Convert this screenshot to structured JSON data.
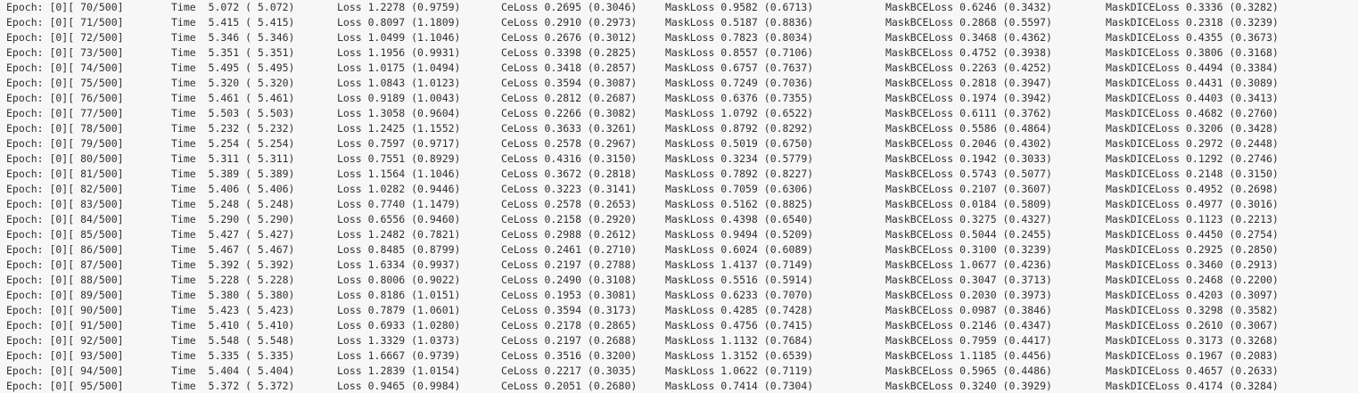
{
  "log": {
    "lines": [
      {
        "epoch": "Epoch: [0][ 70/500]",
        "time": "Time  5.072 ( 5.072)",
        "loss": "Loss 1.2278 (0.9759)",
        "ce": "CeLoss 0.2695 (0.3046)",
        "mask": "MaskLoss 0.9582 (0.6713)",
        "bce": "MaskBCELoss 0.6246 (0.3432)",
        "dice": "MaskDICELoss 0.3336 (0.3282)"
      },
      {
        "epoch": "Epoch: [0][ 71/500]",
        "time": "Time  5.415 ( 5.415)",
        "loss": "Loss 0.8097 (1.1809)",
        "ce": "CeLoss 0.2910 (0.2973)",
        "mask": "MaskLoss 0.5187 (0.8836)",
        "bce": "MaskBCELoss 0.2868 (0.5597)",
        "dice": "MaskDICELoss 0.2318 (0.3239)"
      },
      {
        "epoch": "Epoch: [0][ 72/500]",
        "time": "Time  5.346 ( 5.346)",
        "loss": "Loss 1.0499 (1.1046)",
        "ce": "CeLoss 0.2676 (0.3012)",
        "mask": "MaskLoss 0.7823 (0.8034)",
        "bce": "MaskBCELoss 0.3468 (0.4362)",
        "dice": "MaskDICELoss 0.4355 (0.3673)"
      },
      {
        "epoch": "Epoch: [0][ 73/500]",
        "time": "Time  5.351 ( 5.351)",
        "loss": "Loss 1.1956 (0.9931)",
        "ce": "CeLoss 0.3398 (0.2825)",
        "mask": "MaskLoss 0.8557 (0.7106)",
        "bce": "MaskBCELoss 0.4752 (0.3938)",
        "dice": "MaskDICELoss 0.3806 (0.3168)"
      },
      {
        "epoch": "Epoch: [0][ 74/500]",
        "time": "Time  5.495 ( 5.495)",
        "loss": "Loss 1.0175 (1.0494)",
        "ce": "CeLoss 0.3418 (0.2857)",
        "mask": "MaskLoss 0.6757 (0.7637)",
        "bce": "MaskBCELoss 0.2263 (0.4252)",
        "dice": "MaskDICELoss 0.4494 (0.3384)"
      },
      {
        "epoch": "Epoch: [0][ 75/500]",
        "time": "Time  5.320 ( 5.320)",
        "loss": "Loss 1.0843 (1.0123)",
        "ce": "CeLoss 0.3594 (0.3087)",
        "mask": "MaskLoss 0.7249 (0.7036)",
        "bce": "MaskBCELoss 0.2818 (0.3947)",
        "dice": "MaskDICELoss 0.4431 (0.3089)"
      },
      {
        "epoch": "Epoch: [0][ 76/500]",
        "time": "Time  5.461 ( 5.461)",
        "loss": "Loss 0.9189 (1.0043)",
        "ce": "CeLoss 0.2812 (0.2687)",
        "mask": "MaskLoss 0.6376 (0.7355)",
        "bce": "MaskBCELoss 0.1974 (0.3942)",
        "dice": "MaskDICELoss 0.4403 (0.3413)"
      },
      {
        "epoch": "Epoch: [0][ 77/500]",
        "time": "Time  5.503 ( 5.503)",
        "loss": "Loss 1.3058 (0.9604)",
        "ce": "CeLoss 0.2266 (0.3082)",
        "mask": "MaskLoss 1.0792 (0.6522)",
        "bce": "MaskBCELoss 0.6111 (0.3762)",
        "dice": "MaskDICELoss 0.4682 (0.2760)"
      },
      {
        "epoch": "Epoch: [0][ 78/500]",
        "time": "Time  5.232 ( 5.232)",
        "loss": "Loss 1.2425 (1.1552)",
        "ce": "CeLoss 0.3633 (0.3261)",
        "mask": "MaskLoss 0.8792 (0.8292)",
        "bce": "MaskBCELoss 0.5586 (0.4864)",
        "dice": "MaskDICELoss 0.3206 (0.3428)"
      },
      {
        "epoch": "Epoch: [0][ 79/500]",
        "time": "Time  5.254 ( 5.254)",
        "loss": "Loss 0.7597 (0.9717)",
        "ce": "CeLoss 0.2578 (0.2967)",
        "mask": "MaskLoss 0.5019 (0.6750)",
        "bce": "MaskBCELoss 0.2046 (0.4302)",
        "dice": "MaskDICELoss 0.2972 (0.2448)"
      },
      {
        "epoch": "Epoch: [0][ 80/500]",
        "time": "Time  5.311 ( 5.311)",
        "loss": "Loss 0.7551 (0.8929)",
        "ce": "CeLoss 0.4316 (0.3150)",
        "mask": "MaskLoss 0.3234 (0.5779)",
        "bce": "MaskBCELoss 0.1942 (0.3033)",
        "dice": "MaskDICELoss 0.1292 (0.2746)"
      },
      {
        "epoch": "Epoch: [0][ 81/500]",
        "time": "Time  5.389 ( 5.389)",
        "loss": "Loss 1.1564 (1.1046)",
        "ce": "CeLoss 0.3672 (0.2818)",
        "mask": "MaskLoss 0.7892 (0.8227)",
        "bce": "MaskBCELoss 0.5743 (0.5077)",
        "dice": "MaskDICELoss 0.2148 (0.3150)"
      },
      {
        "epoch": "Epoch: [0][ 82/500]",
        "time": "Time  5.406 ( 5.406)",
        "loss": "Loss 1.0282 (0.9446)",
        "ce": "CeLoss 0.3223 (0.3141)",
        "mask": "MaskLoss 0.7059 (0.6306)",
        "bce": "MaskBCELoss 0.2107 (0.3607)",
        "dice": "MaskDICELoss 0.4952 (0.2698)"
      },
      {
        "epoch": "Epoch: [0][ 83/500]",
        "time": "Time  5.248 ( 5.248)",
        "loss": "Loss 0.7740 (1.1479)",
        "ce": "CeLoss 0.2578 (0.2653)",
        "mask": "MaskLoss 0.5162 (0.8825)",
        "bce": "MaskBCELoss 0.0184 (0.5809)",
        "dice": "MaskDICELoss 0.4977 (0.3016)"
      },
      {
        "epoch": "Epoch: [0][ 84/500]",
        "time": "Time  5.290 ( 5.290)",
        "loss": "Loss 0.6556 (0.9460)",
        "ce": "CeLoss 0.2158 (0.2920)",
        "mask": "MaskLoss 0.4398 (0.6540)",
        "bce": "MaskBCELoss 0.3275 (0.4327)",
        "dice": "MaskDICELoss 0.1123 (0.2213)"
      },
      {
        "epoch": "Epoch: [0][ 85/500]",
        "time": "Time  5.427 ( 5.427)",
        "loss": "Loss 1.2482 (0.7821)",
        "ce": "CeLoss 0.2988 (0.2612)",
        "mask": "MaskLoss 0.9494 (0.5209)",
        "bce": "MaskBCELoss 0.5044 (0.2455)",
        "dice": "MaskDICELoss 0.4450 (0.2754)"
      },
      {
        "epoch": "Epoch: [0][ 86/500]",
        "time": "Time  5.467 ( 5.467)",
        "loss": "Loss 0.8485 (0.8799)",
        "ce": "CeLoss 0.2461 (0.2710)",
        "mask": "MaskLoss 0.6024 (0.6089)",
        "bce": "MaskBCELoss 0.3100 (0.3239)",
        "dice": "MaskDICELoss 0.2925 (0.2850)"
      },
      {
        "epoch": "Epoch: [0][ 87/500]",
        "time": "Time  5.392 ( 5.392)",
        "loss": "Loss 1.6334 (0.9937)",
        "ce": "CeLoss 0.2197 (0.2788)",
        "mask": "MaskLoss 1.4137 (0.7149)",
        "bce": "MaskBCELoss 1.0677 (0.4236)",
        "dice": "MaskDICELoss 0.3460 (0.2913)"
      },
      {
        "epoch": "Epoch: [0][ 88/500]",
        "time": "Time  5.228 ( 5.228)",
        "loss": "Loss 0.8006 (0.9022)",
        "ce": "CeLoss 0.2490 (0.3108)",
        "mask": "MaskLoss 0.5516 (0.5914)",
        "bce": "MaskBCELoss 0.3047 (0.3713)",
        "dice": "MaskDICELoss 0.2468 (0.2200)"
      },
      {
        "epoch": "Epoch: [0][ 89/500]",
        "time": "Time  5.380 ( 5.380)",
        "loss": "Loss 0.8186 (1.0151)",
        "ce": "CeLoss 0.1953 (0.3081)",
        "mask": "MaskLoss 0.6233 (0.7070)",
        "bce": "MaskBCELoss 0.2030 (0.3973)",
        "dice": "MaskDICELoss 0.4203 (0.3097)"
      },
      {
        "epoch": "Epoch: [0][ 90/500]",
        "time": "Time  5.423 ( 5.423)",
        "loss": "Loss 0.7879 (1.0601)",
        "ce": "CeLoss 0.3594 (0.3173)",
        "mask": "MaskLoss 0.4285 (0.7428)",
        "bce": "MaskBCELoss 0.0987 (0.3846)",
        "dice": "MaskDICELoss 0.3298 (0.3582)"
      },
      {
        "epoch": "Epoch: [0][ 91/500]",
        "time": "Time  5.410 ( 5.410)",
        "loss": "Loss 0.6933 (1.0280)",
        "ce": "CeLoss 0.2178 (0.2865)",
        "mask": "MaskLoss 0.4756 (0.7415)",
        "bce": "MaskBCELoss 0.2146 (0.4347)",
        "dice": "MaskDICELoss 0.2610 (0.3067)"
      },
      {
        "epoch": "Epoch: [0][ 92/500]",
        "time": "Time  5.548 ( 5.548)",
        "loss": "Loss 1.3329 (1.0373)",
        "ce": "CeLoss 0.2197 (0.2688)",
        "mask": "MaskLoss 1.1132 (0.7684)",
        "bce": "MaskBCELoss 0.7959 (0.4417)",
        "dice": "MaskDICELoss 0.3173 (0.3268)"
      },
      {
        "epoch": "Epoch: [0][ 93/500]",
        "time": "Time  5.335 ( 5.335)",
        "loss": "Loss 1.6667 (0.9739)",
        "ce": "CeLoss 0.3516 (0.3200)",
        "mask": "MaskLoss 1.3152 (0.6539)",
        "bce": "MaskBCELoss 1.1185 (0.4456)",
        "dice": "MaskDICELoss 0.1967 (0.2083)"
      },
      {
        "epoch": "Epoch: [0][ 94/500]",
        "time": "Time  5.404 ( 5.404)",
        "loss": "Loss 1.2839 (1.0154)",
        "ce": "CeLoss 0.2217 (0.3035)",
        "mask": "MaskLoss 1.0622 (0.7119)",
        "bce": "MaskBCELoss 0.5965 (0.4486)",
        "dice": "MaskDICELoss 0.4657 (0.2633)"
      },
      {
        "epoch": "Epoch: [0][ 95/500]",
        "time": "Time  5.372 ( 5.372)",
        "loss": "Loss 0.9465 (0.9984)",
        "ce": "CeLoss 0.2051 (0.2680)",
        "mask": "MaskLoss 0.7414 (0.7304)",
        "bce": "MaskBCELoss 0.3240 (0.3929)",
        "dice": "MaskDICELoss 0.4174 (0.3284)"
      }
    ]
  }
}
